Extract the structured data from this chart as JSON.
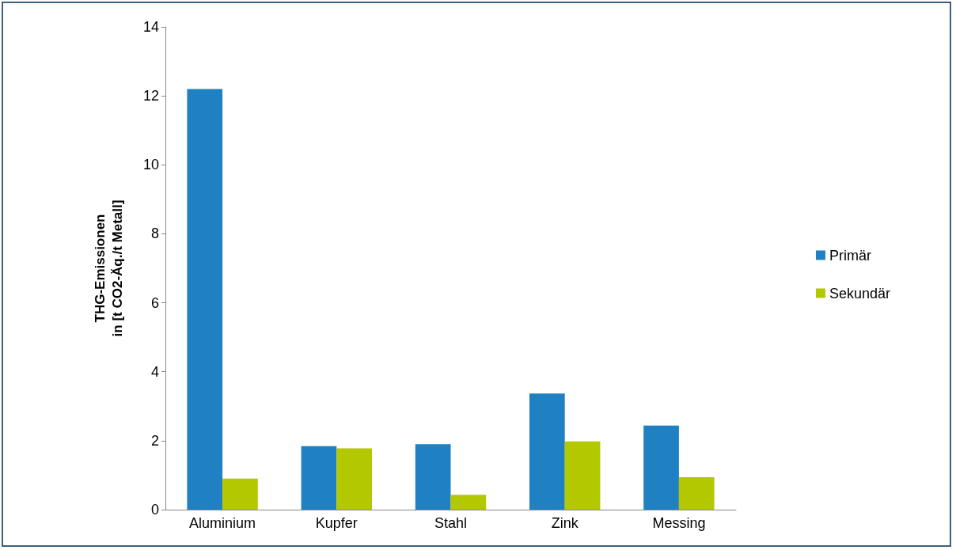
{
  "chart_data": {
    "type": "bar",
    "ylabel": "THG-Emissionen\nin [t CO2-Äq./t Metall]",
    "categories": [
      "Aluminium",
      "Kupfer",
      "Stahl",
      "Zink",
      "Messing"
    ],
    "series": [
      {
        "name": "Primär",
        "color": "#1f80c2",
        "values": [
          12.2,
          1.84,
          1.9,
          3.37,
          2.44
        ]
      },
      {
        "name": "Sekundär",
        "color": "#b4c800",
        "values": [
          0.9,
          1.78,
          0.43,
          1.98,
          0.94
        ]
      }
    ],
    "ylim": [
      0,
      14
    ],
    "yticks": [
      0,
      2,
      4,
      6,
      8,
      10,
      12,
      14
    ],
    "grid": false,
    "legend": "right"
  }
}
